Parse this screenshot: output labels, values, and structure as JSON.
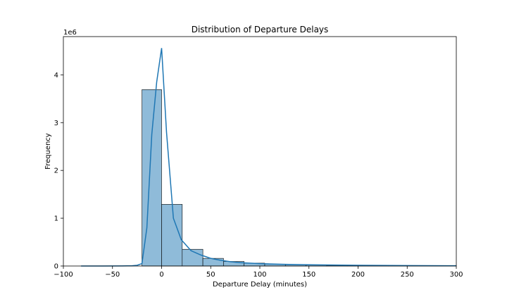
{
  "chart_data": {
    "type": "bar",
    "title": "Distribution of Departure Delays",
    "xlabel": "Departure Delay (minutes)",
    "ylabel": "Frequency",
    "y_scale_label": "1e6",
    "xlim": [
      -100,
      300
    ],
    "ylim": [
      0,
      4800000
    ],
    "x_ticks": [
      -100,
      -50,
      0,
      50,
      100,
      150,
      200,
      250,
      300
    ],
    "x_tick_labels": [
      "−100",
      "−50",
      "0",
      "50",
      "100",
      "150",
      "200",
      "250",
      "300"
    ],
    "y_ticks": [
      0,
      1000000,
      2000000,
      3000000,
      4000000
    ],
    "y_tick_labels": [
      "0",
      "1",
      "2",
      "3",
      "4"
    ],
    "grid": false,
    "bins": [
      {
        "start": -20,
        "end": 0,
        "value": 3690000
      },
      {
        "start": 0,
        "end": 21,
        "value": 1290000
      },
      {
        "start": 21,
        "end": 42,
        "value": 350000
      },
      {
        "start": 42,
        "end": 63,
        "value": 160000
      },
      {
        "start": 63,
        "end": 84,
        "value": 95000
      },
      {
        "start": 84,
        "end": 105,
        "value": 60000
      },
      {
        "start": 105,
        "end": 126,
        "value": 40000
      },
      {
        "start": 126,
        "end": 147,
        "value": 28000
      },
      {
        "start": 147,
        "end": 168,
        "value": 20000
      },
      {
        "start": 168,
        "end": 189,
        "value": 14000
      },
      {
        "start": 189,
        "end": 210,
        "value": 10000
      },
      {
        "start": 210,
        "end": 231,
        "value": 8000
      },
      {
        "start": 231,
        "end": 252,
        "value": 6000
      },
      {
        "start": 252,
        "end": 273,
        "value": 5000
      },
      {
        "start": 273,
        "end": 294,
        "value": 4000
      },
      {
        "start": 294,
        "end": 300,
        "value": 3000
      }
    ],
    "kde": {
      "x": [
        -82,
        -60,
        -40,
        -30,
        -25,
        -20,
        -15,
        -10,
        -5,
        0,
        5,
        12,
        20,
        30,
        40,
        50,
        60,
        70,
        80,
        100,
        125,
        150,
        200,
        250,
        300
      ],
      "y": [
        0,
        0,
        2000,
        5000,
        15000,
        50000,
        800000,
        2750000,
        3850000,
        4560000,
        2800000,
        1000000,
        550000,
        320000,
        230000,
        160000,
        120000,
        90000,
        70000,
        50000,
        35000,
        25000,
        15000,
        9000,
        5000
      ]
    },
    "colors": {
      "bar_fill": "#8fbbd9",
      "bar_edge": "#000000",
      "kde_line": "#1f77b4"
    }
  }
}
